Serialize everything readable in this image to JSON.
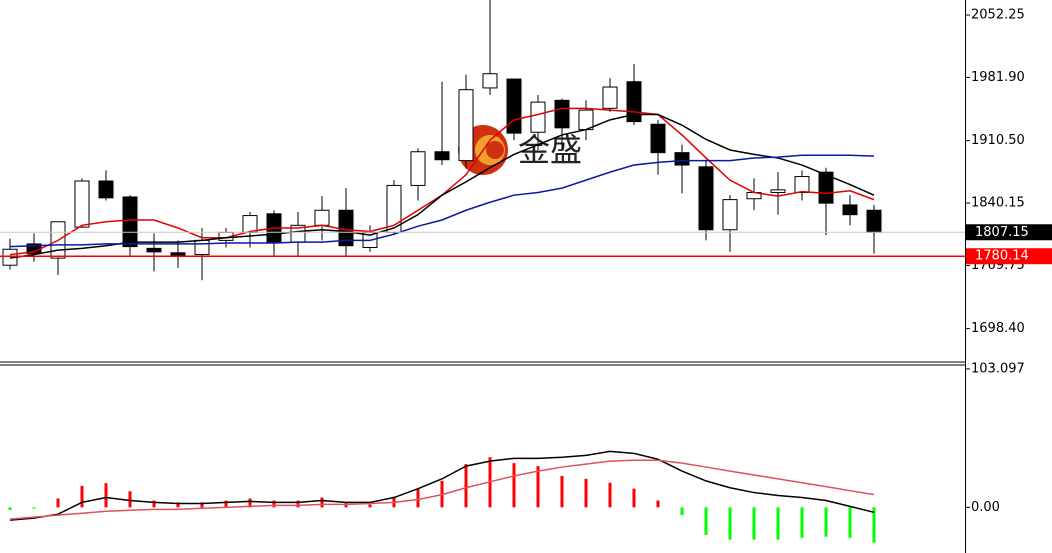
{
  "chart_data": [
    {
      "type": "candlestick",
      "open": [
        1770,
        1794,
        1778,
        1813,
        1865,
        1847,
        1789,
        1784,
        1782,
        1798,
        1807,
        1828,
        1796,
        1815,
        1832,
        1790,
        1807,
        1860,
        1898,
        1888,
        1970,
        1980,
        1920,
        1956,
        1923,
        1947,
        1977,
        1929,
        1897,
        1881,
        1810,
        1845,
        1852,
        1852,
        1875,
        1838,
        1832
      ],
      "high": [
        1800,
        1806,
        1819,
        1868,
        1877,
        1849,
        1806,
        1798,
        1812,
        1812,
        1830,
        1832,
        1830,
        1848,
        1857,
        1815,
        1866,
        1902,
        1977,
        1985,
        2069,
        1980,
        1962,
        1958,
        1956,
        1981,
        1997,
        1934,
        1906,
        1889,
        1849,
        1868,
        1875,
        1877,
        1880,
        1849,
        1838
      ],
      "low": [
        1765,
        1774,
        1759,
        1812,
        1843,
        1780,
        1763,
        1767,
        1753,
        1790,
        1790,
        1780,
        1780,
        1798,
        1780,
        1785,
        1804,
        1843,
        1883,
        1879,
        1962,
        1911,
        1900,
        1900,
        1911,
        1943,
        1928,
        1872,
        1851,
        1798,
        1785,
        1832,
        1827,
        1843,
        1804,
        1815,
        1783
      ],
      "close": [
        1788,
        1783,
        1819,
        1865,
        1846,
        1791,
        1785,
        1781,
        1798,
        1807,
        1826,
        1795,
        1815,
        1832,
        1792,
        1807,
        1860,
        1898,
        1889,
        1968,
        1986,
        1919,
        1954,
        1925,
        1945,
        1971,
        1932,
        1897,
        1883,
        1810,
        1844,
        1852,
        1855,
        1870,
        1840,
        1827,
        1807.15
      ],
      "up_color": "#ffffff",
      "down_color": "#000000",
      "lines": [
        {
          "color": "#e00000",
          "values": [
            1782,
            1785,
            1798,
            1815,
            1819,
            1821,
            1821,
            1812,
            1801,
            1801,
            1808,
            1812,
            1812,
            1815,
            1810,
            1808,
            1815,
            1832,
            1849,
            1872,
            1911,
            1934,
            1940,
            1947,
            1947,
            1945,
            1943,
            1940,
            1917,
            1891,
            1866,
            1852,
            1848,
            1853,
            1851,
            1854,
            1844
          ]
        },
        {
          "color": "#000000",
          "values": [
            1778,
            1782,
            1787,
            1789,
            1792,
            1796,
            1796,
            1796,
            1798,
            1801,
            1803,
            1805,
            1808,
            1810,
            1808,
            1804,
            1812,
            1827,
            1849,
            1864,
            1880,
            1895,
            1906,
            1917,
            1923,
            1934,
            1940,
            1940,
            1928,
            1912,
            1900,
            1895,
            1891,
            1883,
            1872,
            1861,
            1849
          ]
        },
        {
          "color": "#0a1aa0",
          "values": [
            1791,
            1792,
            1793,
            1793,
            1794,
            1794,
            1794,
            1794,
            1794,
            1795,
            1795,
            1795,
            1796,
            1796,
            1798,
            1798,
            1805,
            1814,
            1821,
            1832,
            1841,
            1849,
            1852,
            1857,
            1866,
            1875,
            1883,
            1886,
            1888,
            1888,
            1888,
            1891,
            1892,
            1894,
            1894,
            1894,
            1893
          ]
        }
      ],
      "price_lines": [
        {
          "value": 1807.15,
          "color": "#c8c8c8",
          "label_bg": "#000000"
        },
        {
          "value": 1780.14,
          "color": "#ff0000",
          "label_bg": "#ff0000"
        }
      ],
      "watermark": "金盛",
      "ylim": [
        1660.8,
        2069.2
      ],
      "yticks": [
        2052.25,
        {
          "value": 1981.9,
          "label": "1981.90"
        },
        {
          "value": 1910.5,
          "label": "1910.50"
        },
        1840.15,
        1769.75,
        {
          "value": 1698.4,
          "label": "1698.40"
        }
      ]
    },
    {
      "type": "macd",
      "values": [
        -2,
        -1,
        6.6,
        16,
        18,
        12,
        5,
        3.7,
        3.7,
        5,
        6.6,
        5,
        5,
        7.3,
        3.7,
        2.2,
        8,
        13.9,
        19.7,
        32.2,
        37.3,
        32.9,
        30.7,
        23.4,
        21.2,
        18.3,
        13.9,
        5.1,
        -5.8,
        -20.5,
        -24.1,
        -24.1,
        -24.1,
        -22.7,
        -21.9,
        -22.7,
        -26.3
      ],
      "pos_color": "#ff0000",
      "neg_color": "#00ff00",
      "lines": [
        {
          "color": "#000000",
          "values": [
            -9.5,
            -8,
            -5.1,
            3.7,
            7.3,
            5.1,
            3.7,
            2.9,
            2.9,
            3.7,
            4.4,
            3.7,
            3.7,
            5.1,
            3.7,
            3.7,
            7.3,
            13.9,
            21.2,
            30.7,
            34.4,
            36.5,
            36.5,
            37.3,
            38.7,
            41.7,
            40.2,
            35.8,
            27,
            19.7,
            14.6,
            11,
            8.8,
            7.3,
            5.1,
            0.7,
            -3.7
          ]
        },
        {
          "color": "#e05060",
          "values": [
            -8.8,
            -7.3,
            -5.8,
            -4.4,
            -2.9,
            -2.2,
            -1.5,
            -1.5,
            -0.7,
            0,
            0.7,
            1.5,
            1.5,
            2.2,
            2.2,
            2.9,
            3.7,
            5.8,
            9.5,
            14.6,
            19,
            23.4,
            27,
            30,
            32.2,
            34.4,
            35.1,
            35.1,
            32.9,
            30,
            27,
            24.1,
            21.2,
            18.3,
            15.4,
            12.4,
            9.5
          ]
        }
      ],
      "ylim": [
        -34,
        106
      ],
      "yticks": [
        103.097,
        {
          "value": 0,
          "label": "0.00"
        }
      ]
    }
  ]
}
